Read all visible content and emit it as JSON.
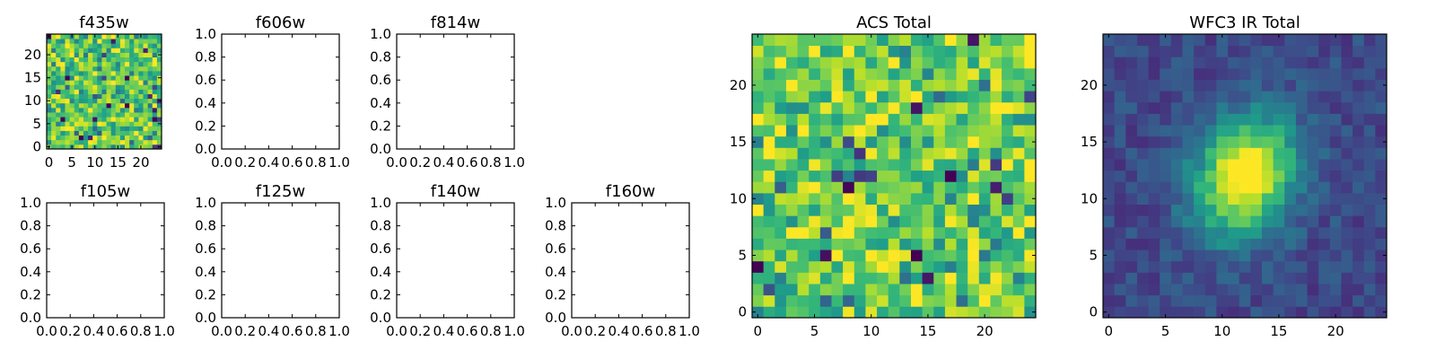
{
  "chart_data": [
    {
      "type": "heatmap",
      "title": "f435w",
      "xlabel": "",
      "ylabel": "",
      "xlim": [
        -0.5,
        24.5
      ],
      "ylim": [
        -0.5,
        24.5
      ],
      "xticks": [
        0,
        5,
        10,
        15,
        20
      ],
      "yticks": [
        0,
        5,
        10,
        15,
        20
      ],
      "grid_size": [
        25,
        25
      ],
      "colormap": "viridis",
      "image": "noise"
    },
    {
      "type": "empty",
      "title": "f606w",
      "xlim": [
        0,
        1
      ],
      "ylim": [
        0,
        1
      ],
      "xticks": [
        "0.0",
        "0.2",
        "0.4",
        "0.6",
        "0.8",
        "1.0"
      ],
      "yticks": [
        "0.0",
        "0.2",
        "0.4",
        "0.6",
        "0.8",
        "1.0"
      ]
    },
    {
      "type": "empty",
      "title": "f814w",
      "xlim": [
        0,
        1
      ],
      "ylim": [
        0,
        1
      ],
      "xticks": [
        "0.0",
        "0.2",
        "0.4",
        "0.6",
        "0.8",
        "1.0"
      ],
      "yticks": [
        "0.0",
        "0.2",
        "0.4",
        "0.6",
        "0.8",
        "1.0"
      ]
    },
    {
      "type": "empty",
      "title": "f105w",
      "xlim": [
        0,
        1
      ],
      "ylim": [
        0,
        1
      ],
      "xticks": [
        "0.0",
        "0.2",
        "0.4",
        "0.6",
        "0.8",
        "1.0"
      ],
      "yticks": [
        "0.0",
        "0.2",
        "0.4",
        "0.6",
        "0.8",
        "1.0"
      ]
    },
    {
      "type": "empty",
      "title": "f125w",
      "xlim": [
        0,
        1
      ],
      "ylim": [
        0,
        1
      ],
      "xticks": [
        "0.0",
        "0.2",
        "0.4",
        "0.6",
        "0.8",
        "1.0"
      ],
      "yticks": [
        "0.0",
        "0.2",
        "0.4",
        "0.6",
        "0.8",
        "1.0"
      ]
    },
    {
      "type": "empty",
      "title": "f140w",
      "xlim": [
        0,
        1
      ],
      "ylim": [
        0,
        1
      ],
      "xticks": [
        "0.0",
        "0.2",
        "0.4",
        "0.6",
        "0.8",
        "1.0"
      ],
      "yticks": [
        "0.0",
        "0.2",
        "0.4",
        "0.6",
        "0.8",
        "1.0"
      ]
    },
    {
      "type": "empty",
      "title": "f160w",
      "xlim": [
        0,
        1
      ],
      "ylim": [
        0,
        1
      ],
      "xticks": [
        "0.0",
        "0.2",
        "0.4",
        "0.6",
        "0.8",
        "1.0"
      ],
      "yticks": [
        "0.0",
        "0.2",
        "0.4",
        "0.6",
        "0.8",
        "1.0"
      ]
    },
    {
      "type": "heatmap",
      "title": "ACS Total",
      "xlim": [
        -0.5,
        24.5
      ],
      "ylim": [
        -0.5,
        24.5
      ],
      "xticks": [
        0,
        5,
        10,
        15,
        20
      ],
      "yticks": [
        0,
        5,
        10,
        15,
        20
      ],
      "grid_size": [
        25,
        25
      ],
      "colormap": "viridis",
      "image": "noise"
    },
    {
      "type": "heatmap",
      "title": "WFC3 IR Total",
      "xlim": [
        -0.5,
        24.5
      ],
      "ylim": [
        -0.5,
        24.5
      ],
      "xticks": [
        0,
        5,
        10,
        15,
        20
      ],
      "yticks": [
        0,
        5,
        10,
        15,
        20
      ],
      "grid_size": [
        25,
        25
      ],
      "colormap": "viridis",
      "image": "source",
      "source_center": [
        12,
        12
      ]
    }
  ]
}
